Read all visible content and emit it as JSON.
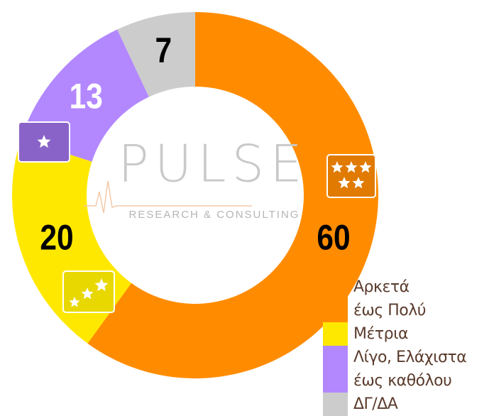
{
  "chart_data": {
    "type": "donut",
    "logo": "PULSE",
    "logo_subtitle": "RESEARCH & CONSULTING",
    "categories": [
      "Αρκετά\nέως Πολύ",
      "Μέτρια",
      "Λίγο, Ελάχιστα\nέως καθόλου",
      "ΔΓ/ΔΑ"
    ],
    "values": [
      60,
      20,
      13,
      7
    ],
    "colors": [
      "#ff8c00",
      "#ffe800",
      "#b388ff",
      "#cccccc"
    ],
    "label_colors": [
      "#000000",
      "#000000",
      "#ffffff",
      "#000000"
    ]
  }
}
